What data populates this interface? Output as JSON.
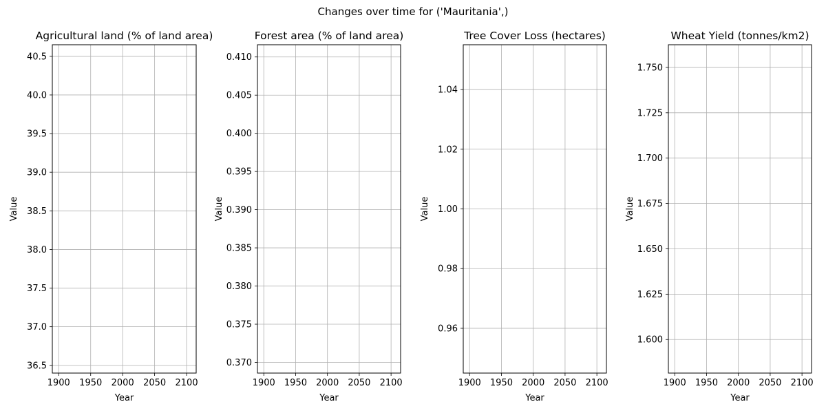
{
  "suptitle": "Changes over time for ('Mauritania',)",
  "chart_data": [
    {
      "type": "line",
      "title": "Agricultural land (% of land area)",
      "xlabel": "Year",
      "ylabel": "Value",
      "xticks": [
        "1900",
        "1950",
        "2000",
        "2050",
        "2100"
      ],
      "xlim": [
        1890,
        2115
      ],
      "yticks": [
        "36.5",
        "37.0",
        "37.5",
        "38.0",
        "38.5",
        "39.0",
        "39.5",
        "40.0",
        "40.5"
      ],
      "ylim": [
        36.4,
        40.65
      ],
      "grid": true,
      "series": []
    },
    {
      "type": "line",
      "title": "Forest area (% of land area)",
      "xlabel": "Year",
      "ylabel": "Value",
      "xticks": [
        "1900",
        "1950",
        "2000",
        "2050",
        "2100"
      ],
      "xlim": [
        1890,
        2115
      ],
      "yticks": [
        "0.370",
        "0.375",
        "0.380",
        "0.385",
        "0.390",
        "0.395",
        "0.400",
        "0.405",
        "0.410"
      ],
      "ylim": [
        0.3686,
        0.4116
      ],
      "grid": true,
      "series": []
    },
    {
      "type": "line",
      "title": "Tree Cover Loss (hectares)",
      "xlabel": "Year",
      "ylabel": "Value",
      "xticks": [
        "1900",
        "1950",
        "2000",
        "2050",
        "2100"
      ],
      "xlim": [
        1890,
        2115
      ],
      "yticks": [
        "0.96",
        "0.98",
        "1.00",
        "1.02",
        "1.04"
      ],
      "ylim": [
        0.945,
        1.055
      ],
      "grid": true,
      "series": []
    },
    {
      "type": "line",
      "title": "Wheat Yield (tonnes/km2)",
      "xlabel": "Year",
      "ylabel": "Value",
      "xticks": [
        "1900",
        "1950",
        "2000",
        "2050",
        "2100"
      ],
      "xlim": [
        1890,
        2115
      ],
      "yticks": [
        "1.600",
        "1.625",
        "1.650",
        "1.675",
        "1.700",
        "1.725",
        "1.750"
      ],
      "ylim": [
        1.5815,
        1.7625
      ],
      "grid": true,
      "series": []
    }
  ]
}
